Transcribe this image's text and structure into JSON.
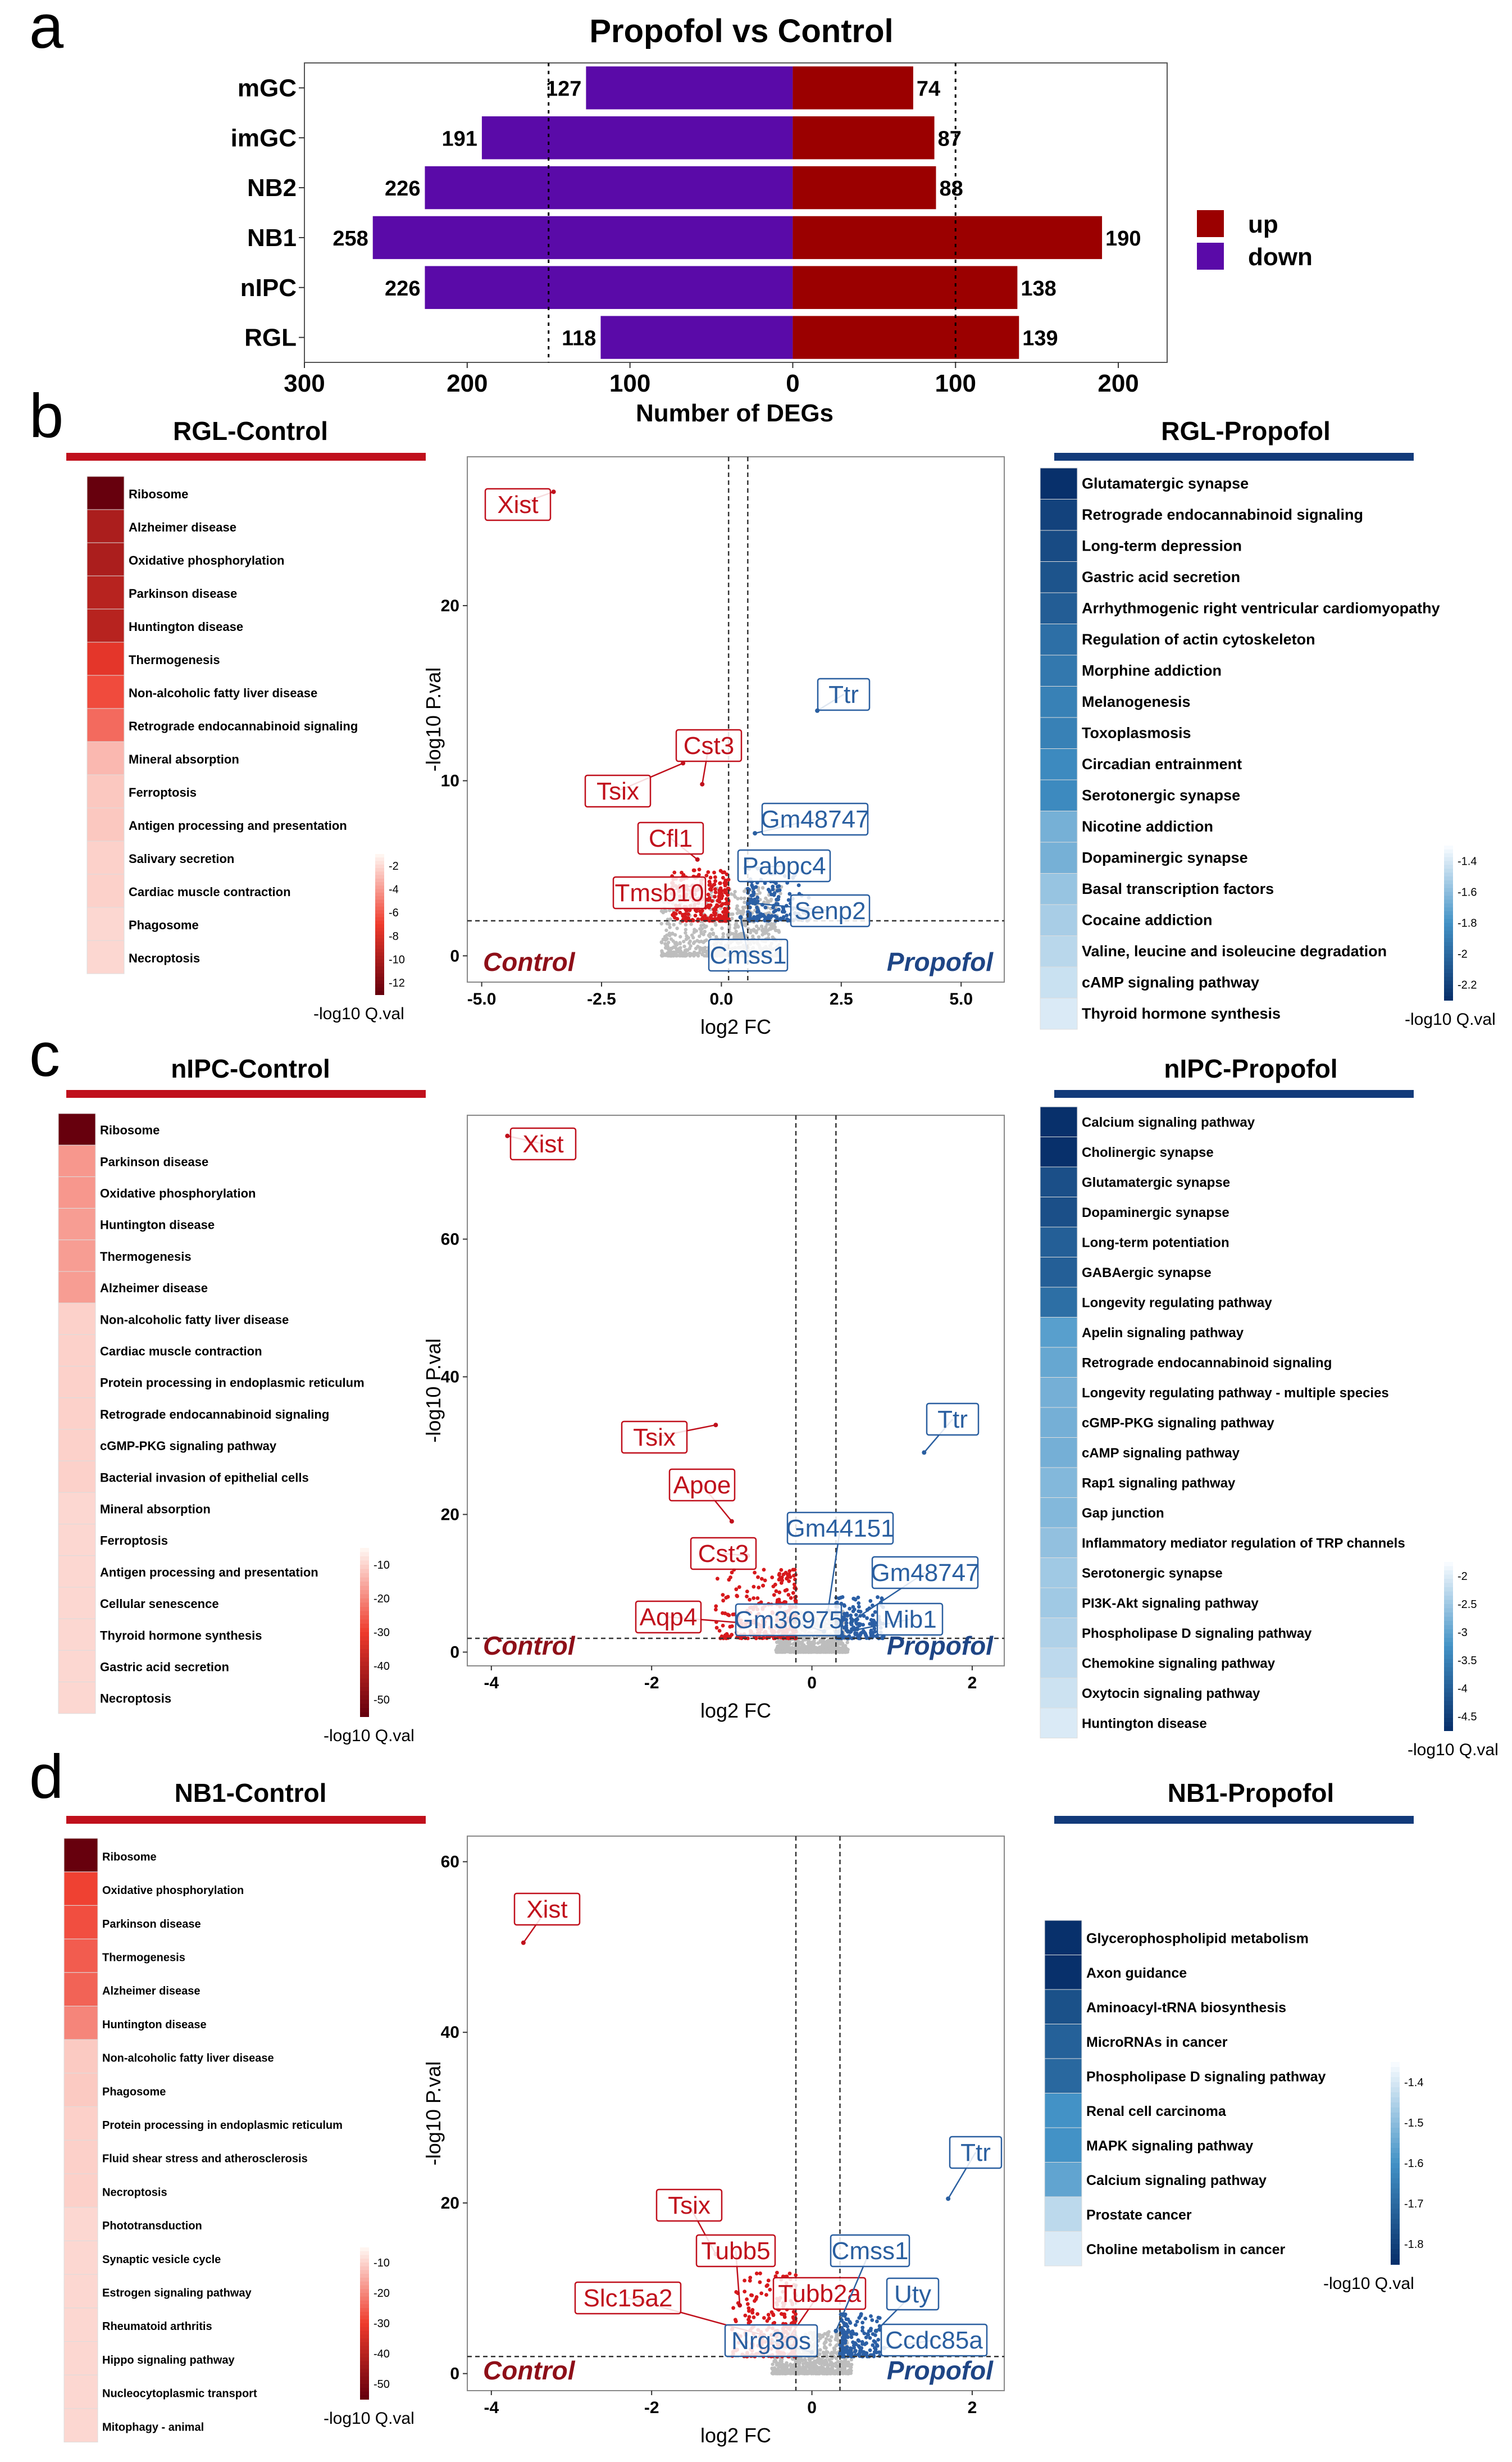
{
  "panels": {
    "a": "a",
    "b": "b",
    "c": "c",
    "d": "d"
  },
  "colors": {
    "up": "#9b0000",
    "down": "#5a0aa8",
    "control_red": "#c0101c",
    "propofol_blue": "#2a5fa0",
    "grey_points": "#bdbdbd",
    "dark_red": "#6b0010",
    "dark_blue": "#0b2a66"
  },
  "chart_data": [
    {
      "id": "panel-a-bar",
      "type": "bar",
      "title": "Propofol vs Control",
      "xlabel": "Number of DEGs",
      "ylabel": "",
      "orientation": "horizontal-diverging",
      "categories": [
        "mGC",
        "imGC",
        "NB2",
        "NB1",
        "nIPC",
        "RGL"
      ],
      "series": [
        {
          "name": "down",
          "values": [
            127,
            191,
            226,
            258,
            226,
            118
          ]
        },
        {
          "name": "up",
          "values": [
            74,
            87,
            88,
            190,
            138,
            139
          ]
        }
      ],
      "xlim": [
        -300,
        230
      ],
      "xticks": [
        -300,
        -200,
        -100,
        0,
        100,
        200
      ],
      "xtick_labels": [
        "300",
        "200",
        "100",
        "0",
        "100",
        "200"
      ],
      "reference_lines": [
        -150,
        100
      ],
      "legend": [
        {
          "name": "up",
          "color": "#9b0000"
        },
        {
          "name": "down",
          "color": "#5a0aa8"
        }
      ]
    },
    {
      "id": "panel-b-volcano",
      "type": "scatter",
      "title": "RGL",
      "xlabel": "log2 FC",
      "ylabel": "-log10 P.val",
      "xlim": [
        -5.3,
        5.9
      ],
      "ylim": [
        -1.5,
        28.5
      ],
      "xticks": [
        -5,
        -2.5,
        0,
        2.5,
        5
      ],
      "xtick_labels": [
        "-5.0",
        "-2.5",
        "0.0",
        "2.5",
        "5.0"
      ],
      "yticks": [
        0,
        10,
        20
      ],
      "ytick_labels": [
        "0",
        "10",
        "20"
      ],
      "vlines": [
        0.15,
        0.55
      ],
      "hline": 2,
      "group_labels": [
        "Control",
        "Propofol"
      ],
      "labeled_genes": [
        {
          "gene": "Xist",
          "x": -3.5,
          "y": 26.5,
          "side": "control"
        },
        {
          "gene": "Ttr",
          "x": 2.0,
          "y": 14.0,
          "side": "propofol"
        },
        {
          "gene": "Cst3",
          "x": -0.4,
          "y": 9.8,
          "side": "control"
        },
        {
          "gene": "Tsix",
          "x": -0.8,
          "y": 11.0,
          "side": "control"
        },
        {
          "gene": "Cfl1",
          "x": -0.5,
          "y": 5.5,
          "side": "control"
        },
        {
          "gene": "Tmsb10",
          "x": -0.6,
          "y": 4.0,
          "side": "control"
        },
        {
          "gene": "Gm48747",
          "x": 0.7,
          "y": 7.0,
          "side": "propofol"
        },
        {
          "gene": "Pabpc4",
          "x": 0.5,
          "y": 5.0,
          "side": "propofol"
        },
        {
          "gene": "Senp2",
          "x": 0.7,
          "y": 3.0,
          "side": "propofol"
        },
        {
          "gene": "Cmss1",
          "x": 0.4,
          "y": 2.2,
          "side": "propofol"
        }
      ]
    },
    {
      "id": "panel-c-volcano",
      "type": "scatter",
      "title": "nIPC",
      "xlabel": "log2 FC",
      "ylabel": "-log10 P.val",
      "xlim": [
        -4.3,
        2.4
      ],
      "ylim": [
        -2,
        78
      ],
      "xticks": [
        -4,
        -2,
        0,
        2
      ],
      "xtick_labels": [
        "-4",
        "-2",
        "0",
        "2"
      ],
      "yticks": [
        0,
        20,
        40,
        60
      ],
      "ytick_labels": [
        "0",
        "20",
        "40",
        "60"
      ],
      "vlines": [
        -0.2,
        0.3
      ],
      "hline": 2,
      "group_labels": [
        "Control",
        "Propofol"
      ],
      "labeled_genes": [
        {
          "gene": "Xist",
          "x": -3.8,
          "y": 75.0,
          "side": "control"
        },
        {
          "gene": "Ttr",
          "x": 1.4,
          "y": 29.0,
          "side": "propofol"
        },
        {
          "gene": "Tsix",
          "x": -1.2,
          "y": 33.0,
          "side": "control"
        },
        {
          "gene": "Apoe",
          "x": -1.0,
          "y": 19.0,
          "side": "control"
        },
        {
          "gene": "Cst3",
          "x": -0.8,
          "y": 14.0,
          "side": "control"
        },
        {
          "gene": "Aqp4",
          "x": -0.6,
          "y": 4.0,
          "side": "control"
        },
        {
          "gene": "Gm44151",
          "x": 0.2,
          "y": 6.0,
          "side": "propofol"
        },
        {
          "gene": "Gm48747",
          "x": 0.5,
          "y": 4.5,
          "side": "propofol"
        },
        {
          "gene": "Mib1",
          "x": 0.45,
          "y": 3.0,
          "side": "propofol"
        },
        {
          "gene": "Gm36975",
          "x": 0.15,
          "y": 3.0,
          "side": "propofol"
        }
      ]
    },
    {
      "id": "panel-d-volcano",
      "type": "scatter",
      "title": "NB1",
      "xlabel": "log2 FC",
      "ylabel": "-log10 P.val",
      "xlim": [
        -4.3,
        2.4
      ],
      "ylim": [
        -2,
        63
      ],
      "xticks": [
        -4,
        -2,
        0,
        2
      ],
      "xtick_labels": [
        "-4",
        "-2",
        "0",
        "2"
      ],
      "yticks": [
        0,
        20,
        40,
        60
      ],
      "ytick_labels": [
        "0",
        "20",
        "40",
        "60"
      ],
      "vlines": [
        -0.2,
        0.35
      ],
      "hline": 2,
      "group_labels": [
        "Control",
        "Propofol"
      ],
      "labeled_genes": [
        {
          "gene": "Xist",
          "x": -3.6,
          "y": 50.5,
          "side": "control"
        },
        {
          "gene": "Ttr",
          "x": 1.7,
          "y": 20.5,
          "side": "propofol"
        },
        {
          "gene": "Tsix",
          "x": -1.2,
          "y": 14.0,
          "side": "control"
        },
        {
          "gene": "Tubb5",
          "x": -0.9,
          "y": 8.0,
          "side": "control"
        },
        {
          "gene": "Tubb2a",
          "x": -0.3,
          "y": 4.0,
          "side": "control"
        },
        {
          "gene": "Slc15a2",
          "x": -0.6,
          "y": 4.5,
          "side": "control"
        },
        {
          "gene": "Cmss1",
          "x": 0.3,
          "y": 5.0,
          "side": "propofol"
        },
        {
          "gene": "Uty",
          "x": 0.8,
          "y": 5.0,
          "side": "propofol"
        },
        {
          "gene": "Ccdc85a",
          "x": 0.9,
          "y": 3.0,
          "side": "propofol"
        },
        {
          "gene": "Nrg3os",
          "x": 0.0,
          "y": 2.5,
          "side": "propofol"
        }
      ]
    },
    {
      "id": "panel-b-heat-control",
      "type": "heatmap",
      "title": "RGL-Control",
      "legend_title": "-log10 Q.val",
      "colorbar_ticks": [
        "-2",
        "-4",
        "-6",
        "-8",
        "-10",
        "-12"
      ],
      "terms": [
        "Ribosome",
        "Alzheimer disease",
        "Oxidative phosphorylation",
        "Parkinson disease",
        "Huntington disease",
        "Thermogenesis",
        "Non-alcoholic fatty liver disease",
        "Retrograde endocannabinoid signaling",
        "Mineral absorption",
        "Ferroptosis",
        "Antigen processing and presentation",
        "Salivary secretion",
        "Cardiac muscle contraction",
        "Phagosome",
        "Necroptosis"
      ],
      "values": [
        -13,
        -10,
        -10,
        -9.5,
        -9.5,
        -7.5,
        -6.5,
        -5.5,
        -3,
        -2.5,
        -2.5,
        -2.2,
        -2.2,
        -2,
        -2
      ]
    },
    {
      "id": "panel-b-heat-propofol",
      "type": "heatmap",
      "title": "RGL-Propofol",
      "legend_title": "-log10 Q.val",
      "colorbar_ticks": [
        "-1.4",
        "-1.6",
        "-1.8",
        "-2",
        "-2.2"
      ],
      "terms": [
        "Glutamatergic synapse",
        "Retrograde endocannabinoid signaling",
        "Long-term depression",
        "Gastric acid secretion",
        "Arrhythmogenic right ventricular cardiomyopathy",
        "Regulation of actin cytoskeleton",
        "Morphine addiction",
        "Melanogenesis",
        "Toxoplasmosis",
        "Circadian entrainment",
        "Serotonergic synapse",
        "Nicotine addiction",
        "Dopaminergic synapse",
        "Basal transcription factors",
        "Cocaine addiction",
        "Valine, leucine and isoleucine degradation",
        "cAMP signaling pathway",
        "Thyroid hormone synthesis"
      ],
      "values": [
        -2.3,
        -2.2,
        -2.15,
        -2.1,
        -2.05,
        -1.95,
        -1.9,
        -1.85,
        -1.85,
        -1.8,
        -1.8,
        -1.6,
        -1.6,
        -1.5,
        -1.45,
        -1.4,
        -1.35,
        -1.3
      ]
    },
    {
      "id": "panel-c-heat-control",
      "type": "heatmap",
      "title": "nIPC-Control",
      "legend_title": "-log10 Q.val",
      "colorbar_ticks": [
        "-10",
        "-20",
        "-30",
        "-40",
        "-50"
      ],
      "terms": [
        "Ribosome",
        "Parkinson disease",
        "Oxidative phosphorylation",
        "Huntington disease",
        "Thermogenesis",
        "Alzheimer disease",
        "Non-alcoholic fatty liver disease",
        "Cardiac muscle contraction",
        "Protein processing in endoplasmic reticulum",
        "Retrograde endocannabinoid signaling",
        "cGMP-PKG signaling pathway",
        "Bacterial invasion of epithelial cells",
        "Mineral absorption",
        "Ferroptosis",
        "Antigen processing and presentation",
        "Cellular senescence",
        "Thyroid hormone synthesis",
        "Gastric acid secretion",
        "Necroptosis"
      ],
      "values": [
        -55,
        -12,
        -12,
        -11,
        -11,
        -11,
        -3,
        -3,
        -3,
        -3,
        -3,
        -3,
        -2,
        -2,
        -2,
        -2,
        -2,
        -2,
        -2
      ]
    },
    {
      "id": "panel-c-heat-propofol",
      "type": "heatmap",
      "title": "nIPC-Propofol",
      "legend_title": "-log10 Q.val",
      "colorbar_ticks": [
        "-2",
        "-2.5",
        "-3",
        "-3.5",
        "-4",
        "-4.5"
      ],
      "terms": [
        "Calcium signaling pathway",
        "Cholinergic synapse",
        "Glutamatergic synapse",
        "Dopaminergic synapse",
        "Long-term potentiation",
        "GABAergic synapse",
        "Longevity regulating pathway",
        "Apelin signaling pathway",
        "Retrograde endocannabinoid signaling",
        "Longevity regulating pathway - multiple species",
        "cGMP-PKG signaling pathway",
        "cAMP signaling pathway",
        "Rap1 signaling pathway",
        "Gap junction",
        "Inflammatory mediator regulation of TRP channels",
        "Serotonergic synapse",
        "PI3K-Akt signaling pathway",
        "Phospholipase D signaling pathway",
        "Chemokine signaling pathway",
        "Oxytocin signaling pathway",
        "Huntington disease"
      ],
      "values": [
        -4.6,
        -4.6,
        -4.2,
        -4.2,
        -4.0,
        -4.0,
        -3.8,
        -3.2,
        -3.1,
        -3.0,
        -3.0,
        -3.0,
        -2.9,
        -2.9,
        -2.8,
        -2.7,
        -2.7,
        -2.6,
        -2.5,
        -2.4,
        -2.3
      ]
    },
    {
      "id": "panel-d-heat-control",
      "type": "heatmap",
      "title": "NB1-Control",
      "legend_title": "-log10 Q.val",
      "colorbar_ticks": [
        "-10",
        "-20",
        "-30",
        "-40",
        "-50"
      ],
      "terms": [
        "Ribosome",
        "Oxidative phosphorylation",
        "Parkinson disease",
        "Thermogenesis",
        "Alzheimer disease",
        "Huntington disease",
        "Non-alcoholic fatty liver disease",
        "Phagosome",
        "Protein processing in endoplasmic reticulum",
        "Fluid shear stress and atherosclerosis",
        "Necroptosis",
        "Phototransduction",
        "Synaptic vesicle cycle",
        "Estrogen signaling pathway",
        "Rheumatoid arthritis",
        "Hippo signaling pathway",
        "Nucleocytoplasmic transport",
        "Mitophagy - animal"
      ],
      "values": [
        -52,
        -24,
        -22,
        -20,
        -19,
        -14,
        -4,
        -4,
        -3,
        -3,
        -3,
        -2,
        -2,
        -2,
        -2,
        -2,
        -2,
        -2
      ]
    },
    {
      "id": "panel-d-heat-propofol",
      "type": "heatmap",
      "title": "NB1-Propofol",
      "legend_title": "-log10 Q.val",
      "colorbar_ticks": [
        "-1.4",
        "-1.5",
        "-1.6",
        "-1.7",
        "-1.8"
      ],
      "terms": [
        "Glycerophospholipid metabolism",
        "Axon guidance",
        "Aminoacyl-tRNA biosynthesis",
        "MicroRNAs in cancer",
        "Phospholipase D signaling pathway",
        "Renal cell carcinoma",
        "MAPK signaling pathway",
        "Calcium signaling pathway",
        "Prostate cancer",
        "Choline metabolism in cancer"
      ],
      "values": [
        -1.85,
        -1.85,
        -1.75,
        -1.7,
        -1.68,
        -1.55,
        -1.55,
        -1.5,
        -1.35,
        -1.3
      ]
    }
  ]
}
